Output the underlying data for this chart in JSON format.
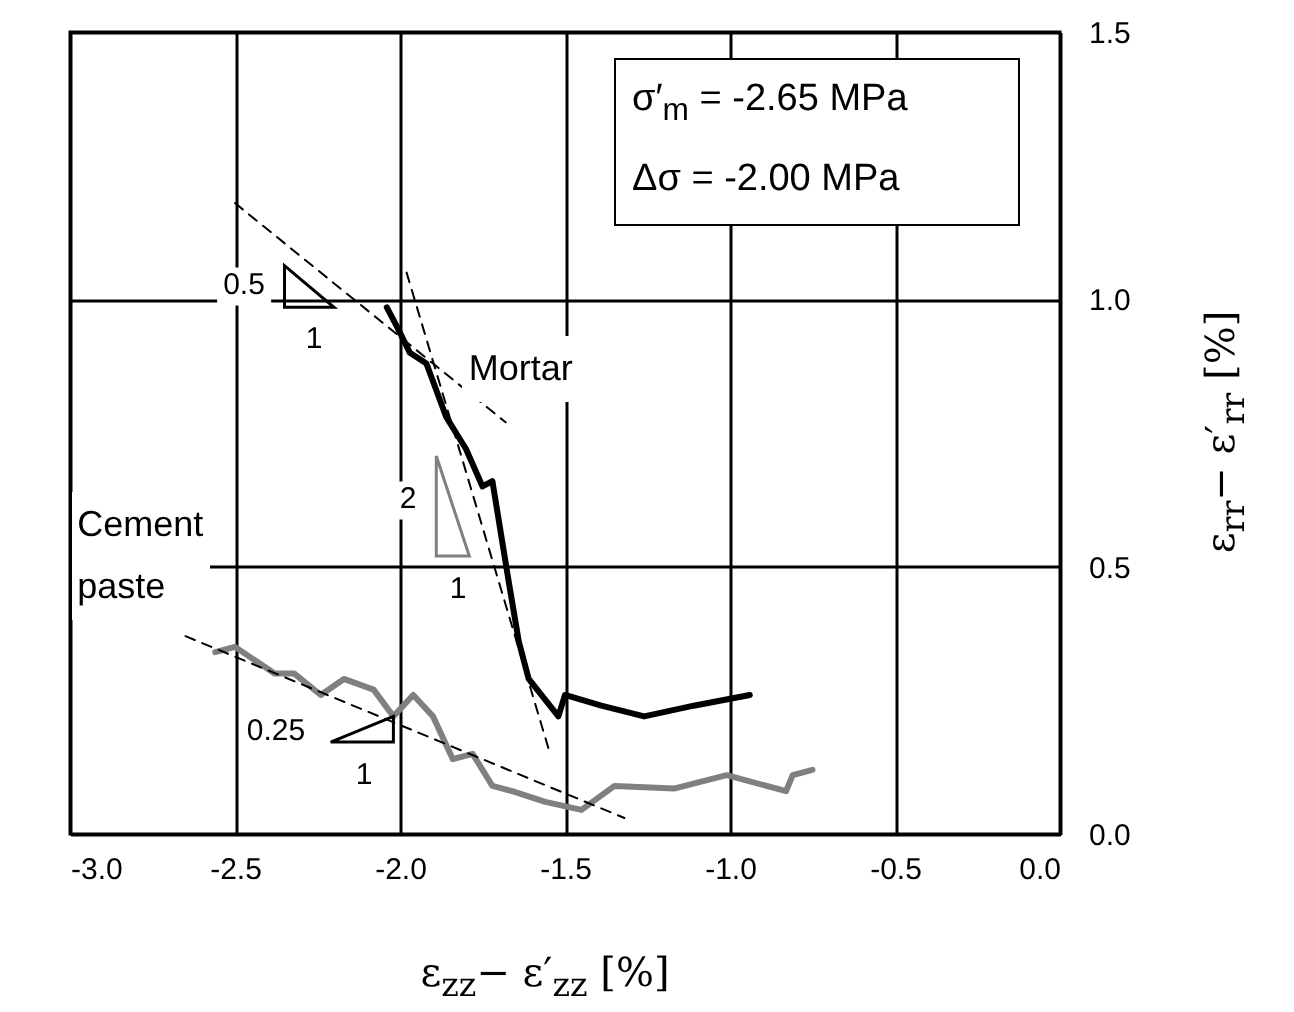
{
  "chart_data": {
    "type": "line",
    "xlabel": "ε$_{zz}$− ε′$_{zz}$ [%]",
    "ylabel": "ε$_{rr}$− ε′$_{rr}$ [%]",
    "xlim": [
      -3,
      0
    ],
    "ylim": [
      0,
      1.5
    ],
    "xticks": [
      {
        "value": -3,
        "label": "-3.0"
      },
      {
        "value": -2.5,
        "label": "-2.5"
      },
      {
        "value": -2,
        "label": "-2.0"
      },
      {
        "value": -1.5,
        "label": "-1.5"
      },
      {
        "value": -1,
        "label": "-1.0"
      },
      {
        "value": -0.5,
        "label": "-0.5"
      },
      {
        "value": 0,
        "label": "0.0"
      }
    ],
    "yticks": [
      {
        "value": 0,
        "label": "0.0"
      },
      {
        "value": 0.5,
        "label": "0.5"
      },
      {
        "value": 1,
        "label": "1.0"
      },
      {
        "value": 1.5,
        "label": "1.5"
      }
    ],
    "grid": true,
    "marker": "none",
    "series": [
      {
        "name": "Mortar",
        "color": "#000000",
        "line_style": "solid",
        "x": [
          -2.04,
          -2.01,
          -1.97,
          -1.92,
          -1.86,
          -1.8,
          -1.75,
          -1.72,
          -1.67,
          -1.64,
          -1.61,
          -1.52,
          -1.5,
          -1.39,
          -1.26,
          -1.11,
          -0.94
        ],
        "values": [
          0.985,
          0.95,
          0.9,
          0.88,
          0.78,
          0.72,
          0.65,
          0.66,
          0.47,
          0.36,
          0.29,
          0.22,
          0.26,
          0.24,
          0.22,
          0.24,
          0.26
        ]
      },
      {
        "name": "Cement paste",
        "color": "#808080",
        "line_style": "solid",
        "x": [
          -2.56,
          -2.5,
          -2.38,
          -2.32,
          -2.24,
          -2.17,
          -2.08,
          -2.02,
          -1.96,
          -1.9,
          -1.84,
          -1.78,
          -1.72,
          -1.66,
          -1.56,
          -1.45,
          -1.35,
          -1.17,
          -1.01,
          -0.83,
          -0.81,
          -0.75
        ],
        "values": [
          0.34,
          0.35,
          0.3,
          0.3,
          0.26,
          0.29,
          0.27,
          0.22,
          0.26,
          0.22,
          0.14,
          0.15,
          0.09,
          0.08,
          0.06,
          0.045,
          0.09,
          0.085,
          0.11,
          0.08,
          0.11,
          0.12
        ]
      },
      {
        "type": "line",
        "color": "#000000",
        "line_style": "dashed",
        "x": [
          -2.5,
          -1.68
        ],
        "values": [
          1.18,
          0.77
        ]
      },
      {
        "type": "line",
        "color": "#000000",
        "line_style": "dashed",
        "x": [
          -1.98,
          -1.55
        ],
        "values": [
          1.05,
          0.16
        ]
      },
      {
        "type": "line",
        "color": "#000000",
        "line_style": "dashed",
        "x": [
          -2.65,
          -1.32
        ],
        "values": [
          0.37,
          0.03
        ]
      }
    ],
    "annotations": [
      "σ′$_{m}$ = -2.65 MPa",
      "Δσ = -2.00 MPa",
      "0.5",
      "1",
      "2",
      "1",
      "0.25",
      "1"
    ]
  }
}
